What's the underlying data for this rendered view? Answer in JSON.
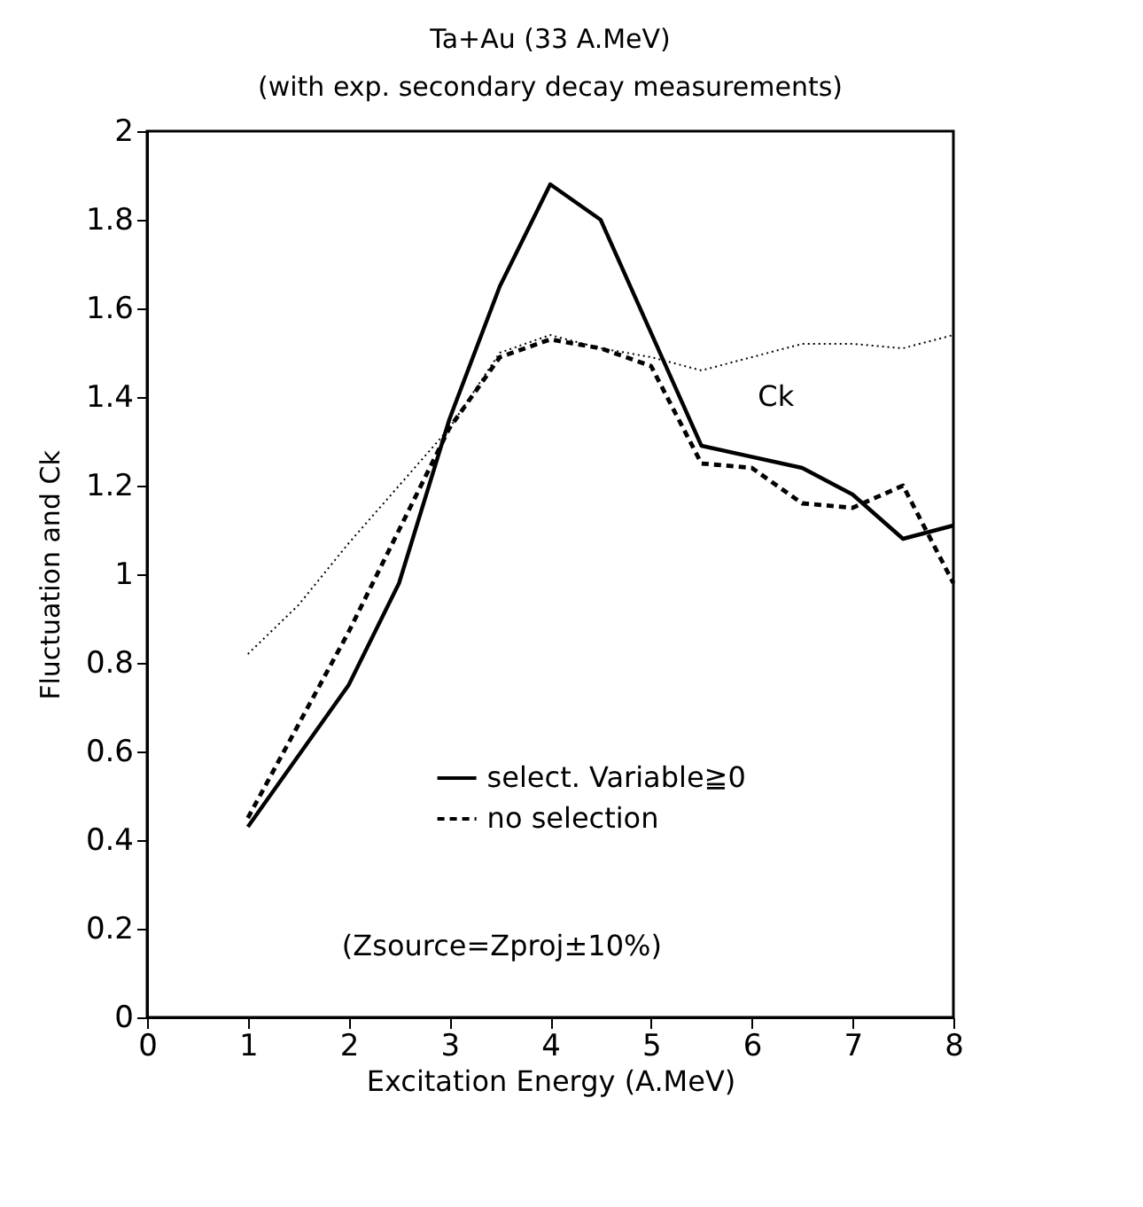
{
  "chart_data": {
    "type": "line",
    "title": "Ta+Au (33 A.MeV)",
    "subtitle": "(with exp. secondary decay measurements)",
    "xlabel": "Excitation Energy (A.MeV)",
    "ylabel": "Fluctuation and Ck",
    "xlim": [
      0,
      8
    ],
    "xticks": [
      0,
      1,
      2,
      3,
      4,
      5,
      6,
      7,
      8
    ],
    "ylim": [
      0,
      2
    ],
    "yticks": [
      0,
      0.2,
      0.4,
      0.6,
      0.8,
      1,
      1.2,
      1.4,
      1.6,
      1.8,
      2
    ],
    "grid": false,
    "legend": "bottom",
    "marker": "none",
    "series": [
      {
        "name": "select. Variable≧0",
        "color": "#000000",
        "line_style": "solid",
        "x": [
          1,
          2,
          2.5,
          3,
          3.5,
          4,
          4.5,
          5.5,
          6.5,
          7,
          7.5,
          8
        ],
        "values": [
          0.43,
          0.75,
          0.98,
          1.35,
          1.65,
          1.88,
          1.8,
          1.29,
          1.24,
          1.18,
          1.08,
          1.11
        ]
      },
      {
        "name": "no selection",
        "color": "#000000",
        "line_style": "dashed",
        "x": [
          1,
          2,
          2.5,
          3,
          3.5,
          4,
          4.5,
          5,
          5.5,
          6,
          6.5,
          7,
          7.5,
          8
        ],
        "values": [
          0.45,
          0.87,
          1.1,
          1.33,
          1.49,
          1.53,
          1.51,
          1.47,
          1.25,
          1.24,
          1.16,
          1.15,
          1.2,
          0.98
        ]
      },
      {
        "color": "#000000",
        "line_style": "dotted",
        "x": [
          1,
          1.5,
          2,
          2.5,
          3,
          3.5,
          4,
          4.5,
          5,
          5.5,
          6,
          6.5,
          7,
          7.5,
          8
        ],
        "values": [
          0.82,
          0.93,
          1.07,
          1.2,
          1.33,
          1.5,
          1.54,
          1.51,
          1.49,
          1.46,
          1.49,
          1.52,
          1.52,
          1.51,
          1.54
        ]
      }
    ],
    "annotations": [
      "Ck",
      "(Zsource=Zproj±10%)"
    ]
  }
}
